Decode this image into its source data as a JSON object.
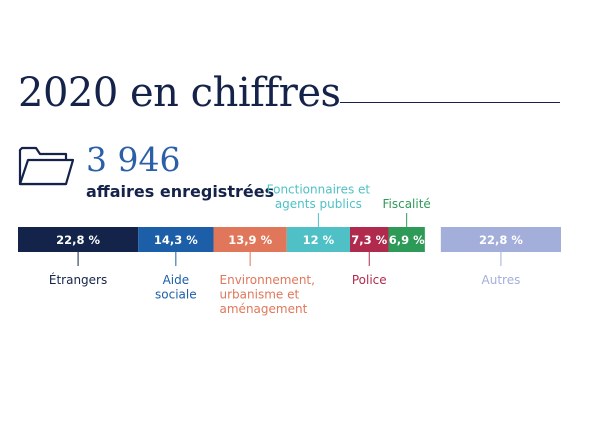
{
  "header": {
    "title": "2020 en chiffres",
    "count": "3 946",
    "count_label": "affaires enregistrées"
  },
  "icons": {
    "folder": "folder-icon"
  },
  "colors": {
    "title": "#15234a",
    "count": "#2b5fa8"
  },
  "chart_data": {
    "type": "bar",
    "subtype": "stacked-horizontal-100",
    "unit": "%",
    "title": "",
    "categories": [
      "Étrangers",
      "Aide sociale",
      "Environnement, urbanisme et aménagement",
      "Fonctionnaires et agents publics",
      "Police",
      "Fiscalité",
      "Autres"
    ],
    "segments": [
      {
        "name": "Étrangers",
        "value": 22.8,
        "value_label": "22,8 %",
        "label_lines": [
          "Étrangers"
        ],
        "label_position": "below",
        "color": "#13234a",
        "text_color": "#ffffff"
      },
      {
        "name": "Aide sociale",
        "value": 14.3,
        "value_label": "14,3 %",
        "label_lines": [
          "Aide",
          "sociale"
        ],
        "label_position": "below",
        "color": "#1d5ea8",
        "text_color": "#ffffff"
      },
      {
        "name": "Environnement, urbanisme et aménagement",
        "value": 13.9,
        "value_label": "13,9 %",
        "label_lines": [
          "Environnement,",
          "urbanisme et",
          "aménagement"
        ],
        "label_position": "below",
        "color": "#e0775a",
        "text_color": "#ffffff"
      },
      {
        "name": "Fonctionnaires et agents publics",
        "value": 12,
        "value_label": "12 %",
        "label_lines": [
          "Fonctionnaires et",
          "agents publics"
        ],
        "label_position": "above",
        "color": "#4fc1c6",
        "text_color": "#ffffff"
      },
      {
        "name": "Police",
        "value": 7.3,
        "value_label": "7,3 %",
        "label_lines": [
          "Police"
        ],
        "label_position": "below",
        "color": "#b02a4d",
        "text_color": "#ffffff"
      },
      {
        "name": "Fiscalité",
        "value": 6.9,
        "value_label": "6,9 %",
        "label_lines": [
          "Fiscalité"
        ],
        "label_position": "above",
        "color": "#2e9a58",
        "text_color": "#ffffff"
      },
      {
        "name": "Autres",
        "value": 22.8,
        "value_label": "22,8 %",
        "label_lines": [
          "Autres"
        ],
        "label_position": "below",
        "color": "#a3aedb",
        "text_color": "#ffffff",
        "separated": true
      }
    ],
    "label_colors": [
      "#15234a",
      "#1d5ea8",
      "#e0775a",
      "#4fc1c6",
      "#b02a4d",
      "#2e9a58",
      "#a3aedb"
    ]
  }
}
